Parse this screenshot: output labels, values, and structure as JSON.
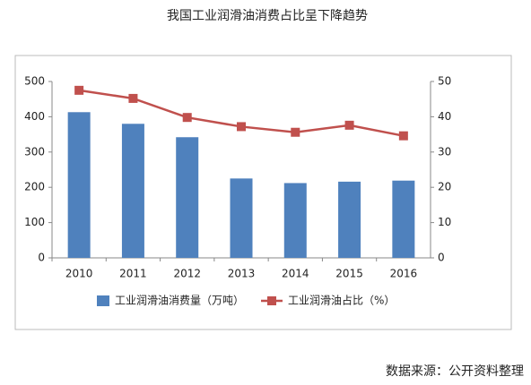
{
  "chart_data": {
    "type": "bar",
    "title": "我国工业润滑油消费占比呈下降趋势",
    "categories": [
      "2010",
      "2011",
      "2012",
      "2013",
      "2014",
      "2015",
      "2016"
    ],
    "series": [
      {
        "name": "工业润滑油消费量（万吨）",
        "type": "bar",
        "color": "#4f81bd",
        "values": [
          413,
          380,
          342,
          225,
          212,
          216,
          219
        ]
      },
      {
        "name": "工业润滑油占比（%）",
        "type": "line",
        "axis": "y2",
        "color": "#c0504d",
        "values": [
          47.5,
          45.2,
          39.8,
          37.2,
          35.6,
          37.6,
          34.6
        ]
      }
    ],
    "ylim": [
      0,
      500
    ],
    "yticks": [
      0,
      100,
      200,
      300,
      400,
      500
    ],
    "y2lim": [
      0,
      50
    ],
    "y2ticks": [
      0,
      10,
      20,
      30,
      40,
      50
    ],
    "grid": false,
    "legend": "bottom",
    "source": "数据来源：公开资料整理"
  }
}
